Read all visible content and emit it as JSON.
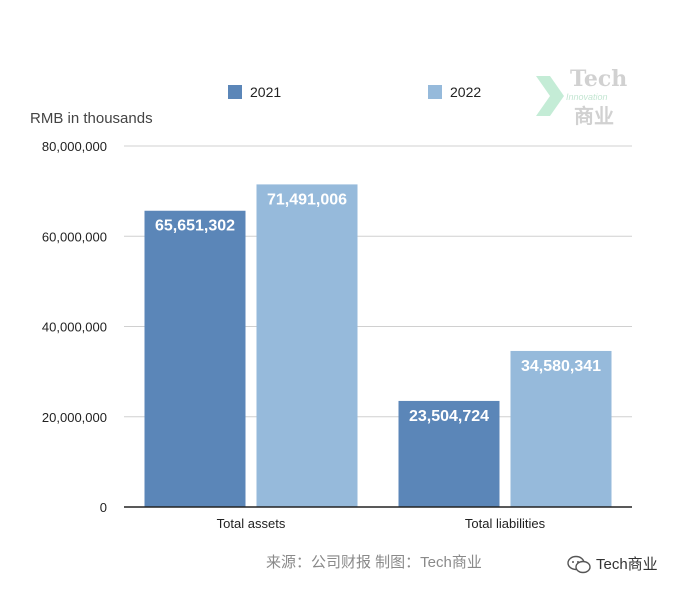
{
  "chart_data": {
    "type": "bar",
    "categories": [
      "Total assets",
      "Total liabilities"
    ],
    "series": [
      {
        "name": "2021",
        "values": [
          65651302,
          23504724
        ],
        "color": "#5b86b8",
        "labels": [
          "65,651,302",
          "23,504,724"
        ]
      },
      {
        "name": "2022",
        "values": [
          71491006,
          34580341
        ],
        "color": "#96badb",
        "labels": [
          "71,491,006",
          "34,580,341"
        ]
      }
    ],
    "ylabel": "RMB in thousands",
    "ylim": [
      0,
      80000000
    ],
    "yticks": [
      {
        "value": 0,
        "label": "0"
      },
      {
        "value": 20000000,
        "label": "20,000,000"
      },
      {
        "value": 40000000,
        "label": "40,000,000"
      },
      {
        "value": 60000000,
        "label": "60,000,000"
      },
      {
        "value": 80000000,
        "label": "80,000,000"
      }
    ],
    "grid": true,
    "legend_position": "top"
  },
  "watermark": {
    "line1": "Tech",
    "line2": "Innovation",
    "line3": "商业"
  },
  "source_text": "来源：公司财报 制图：Tech商业",
  "brand_text": "Tech商业"
}
